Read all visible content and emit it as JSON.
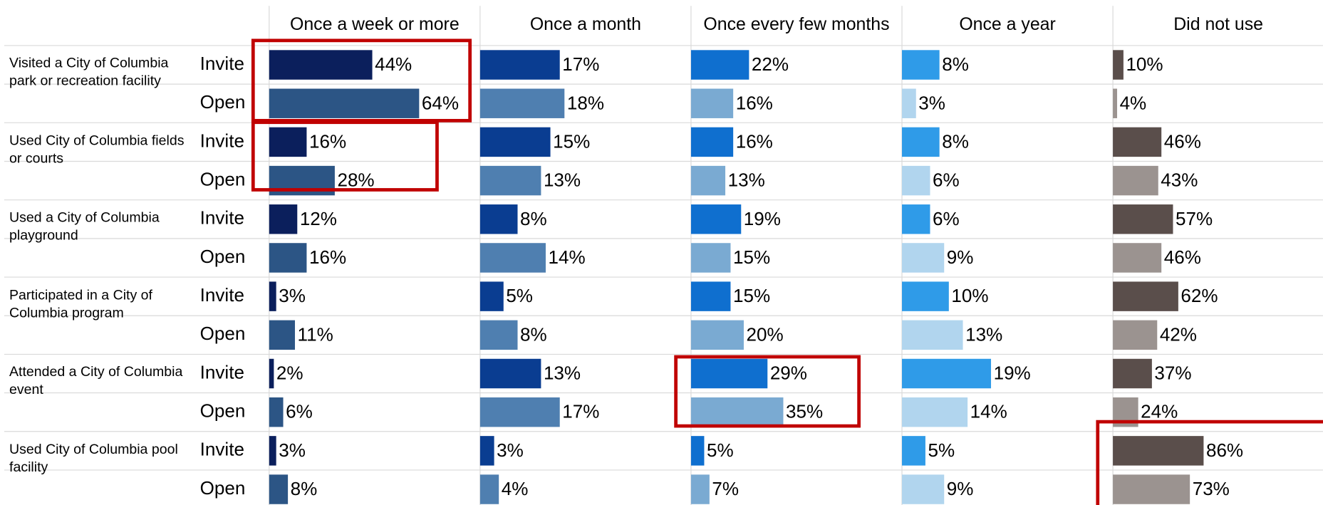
{
  "chart_data": {
    "type": "bar",
    "categories": [
      "Visited a City of Columbia park or recreation facility",
      "Used City of Columbia fields or courts",
      "Used a City of Columbia playground",
      "Participated in a City of Columbia program",
      "Attended a City of Columbia event",
      "Used City of Columbia pool facility"
    ],
    "groups": [
      "Invite",
      "Open"
    ],
    "panels": [
      {
        "name": "Once a week or more",
        "colors": [
          "#0b1f5c",
          "#2c5585"
        ],
        "xlim": [
          0,
          90
        ],
        "values": [
          [
            44,
            64
          ],
          [
            16,
            28
          ],
          [
            12,
            16
          ],
          [
            3,
            11
          ],
          [
            2,
            6
          ],
          [
            3,
            8
          ]
        ],
        "value_labels": [
          [
            "44%",
            "64%"
          ],
          [
            "16%",
            "28%"
          ],
          [
            "12%",
            "16%"
          ],
          [
            "3%",
            "11%"
          ],
          [
            "2%",
            "6%"
          ],
          [
            "3%",
            "8%"
          ]
        ]
      },
      {
        "name": "Once a month",
        "colors": [
          "#0a3d91",
          "#4f7fb0"
        ],
        "xlim": [
          0,
          45
        ],
        "values": [
          [
            17,
            18
          ],
          [
            15,
            13
          ],
          [
            8,
            14
          ],
          [
            5,
            8
          ],
          [
            13,
            17
          ],
          [
            3,
            4
          ]
        ],
        "value_labels": [
          [
            "17%",
            "18%"
          ],
          [
            "15%",
            "13%"
          ],
          [
            "8%",
            "14%"
          ],
          [
            "5%",
            "8%"
          ],
          [
            "13%",
            "17%"
          ],
          [
            "3%",
            "4%"
          ]
        ]
      },
      {
        "name": "Once every few months",
        "colors": [
          "#0f6fcf",
          "#7aaad2"
        ],
        "xlim": [
          0,
          80
        ],
        "values": [
          [
            22,
            16
          ],
          [
            16,
            13
          ],
          [
            19,
            15
          ],
          [
            15,
            20
          ],
          [
            29,
            35
          ],
          [
            5,
            7
          ]
        ],
        "value_labels": [
          [
            "22%",
            "16%"
          ],
          [
            "16%",
            "13%"
          ],
          [
            "19%",
            "15%"
          ],
          [
            "15%",
            "20%"
          ],
          [
            "29%",
            "35%"
          ],
          [
            "5%",
            "7%"
          ]
        ]
      },
      {
        "name": "Once a year",
        "colors": [
          "#2f9be8",
          "#b1d5ee"
        ],
        "xlim": [
          0,
          45
        ],
        "values": [
          [
            8,
            3
          ],
          [
            8,
            6
          ],
          [
            6,
            9
          ],
          [
            10,
            13
          ],
          [
            19,
            14
          ],
          [
            5,
            9
          ]
        ],
        "value_labels": [
          [
            "8%",
            "3%"
          ],
          [
            "8%",
            "6%"
          ],
          [
            "6%",
            "9%"
          ],
          [
            "10%",
            "13%"
          ],
          [
            "19%",
            "14%"
          ],
          [
            "5%",
            "9%"
          ]
        ]
      },
      {
        "name": "Did not use",
        "colors": [
          "#5a4e4b",
          "#9b9390"
        ],
        "xlim": [
          0,
          200
        ],
        "values": [
          [
            10,
            4
          ],
          [
            46,
            43
          ],
          [
            57,
            46
          ],
          [
            62,
            42
          ],
          [
            37,
            24
          ],
          [
            86,
            73
          ]
        ],
        "value_labels": [
          [
            "10%",
            "4%"
          ],
          [
            "46%",
            "43%"
          ],
          [
            "57%",
            "46%"
          ],
          [
            "62%",
            "42%"
          ],
          [
            "37%",
            "24%"
          ],
          [
            "86%",
            "73%"
          ]
        ]
      }
    ]
  }
}
